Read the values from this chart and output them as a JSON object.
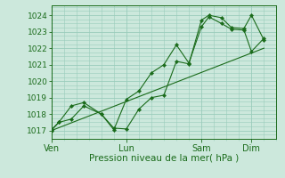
{
  "xlabel": "Pression niveau de la mer( hPa )",
  "ylim": [
    1016.5,
    1024.6
  ],
  "yticks": [
    1017,
    1018,
    1019,
    1020,
    1021,
    1022,
    1023,
    1024
  ],
  "background_color": "#cce8dc",
  "grid_color": "#99ccbb",
  "line_color": "#1a6b1a",
  "xtick_labels": [
    "Ven",
    "Lun",
    "Sam",
    "Dim"
  ],
  "xtick_positions": [
    0,
    3,
    6,
    8
  ],
  "xlim": [
    0,
    9
  ],
  "series1_x": [
    0,
    0.3,
    0.8,
    1.3,
    2.0,
    2.5,
    3.0,
    3.5,
    4.0,
    4.5,
    5.0,
    5.5,
    6.0,
    6.3,
    6.8,
    7.2,
    7.7,
    8.0,
    8.5
  ],
  "series1_y": [
    1017.0,
    1017.5,
    1017.7,
    1018.5,
    1018.0,
    1017.15,
    1017.1,
    1018.3,
    1019.0,
    1019.15,
    1021.2,
    1021.05,
    1023.7,
    1024.0,
    1023.85,
    1023.25,
    1023.2,
    1024.0,
    1022.5
  ],
  "series2_x": [
    0,
    0.3,
    0.8,
    1.3,
    2.0,
    2.5,
    3.0,
    3.5,
    4.0,
    4.5,
    5.0,
    5.5,
    6.0,
    6.3,
    6.8,
    7.2,
    7.7,
    8.0,
    8.5
  ],
  "series2_y": [
    1017.05,
    1017.5,
    1018.5,
    1018.7,
    1018.0,
    1017.05,
    1018.9,
    1019.4,
    1020.5,
    1021.0,
    1022.2,
    1021.1,
    1023.3,
    1023.9,
    1023.5,
    1023.15,
    1023.1,
    1021.8,
    1022.6
  ],
  "trend_x": [
    0,
    8.5
  ],
  "trend_y": [
    1017.0,
    1022.0
  ],
  "fig_width": 3.2,
  "fig_height": 2.0,
  "dpi": 100
}
